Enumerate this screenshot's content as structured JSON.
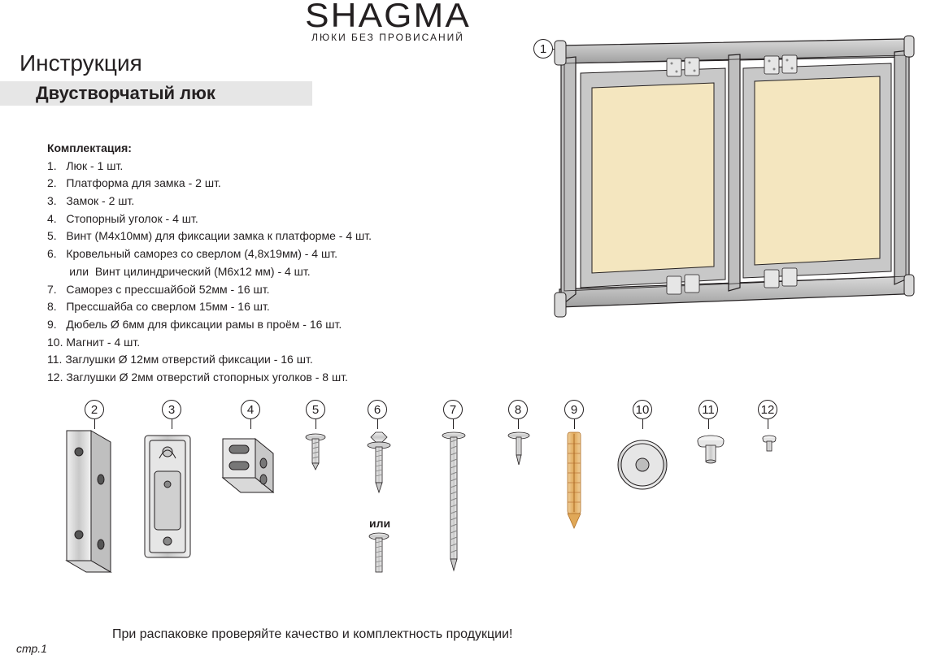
{
  "brand": {
    "name": "SHAGMA",
    "tagline": "ЛЮКИ БЕЗ ПРОВИСАНИЙ"
  },
  "title": "Инструкция",
  "subtitle": "Двустворчатый люк",
  "contents_header": "Комплектация:",
  "contents": [
    "1.   Люк - 1 шт.",
    "2.   Платформа для замка - 2 шт.",
    "3.   Замок - 2 шт.",
    "4.   Стопорный уголок - 4 шт.",
    "5.   Винт (М4х10мм) для фиксации замка к платформе - 4 шт.",
    "6.   Кровельный саморез со сверлом (4,8х19мм) - 4 шт.",
    "       или  Винт цилиндрический (М6х12 мм) - 4 шт.",
    "7.   Саморез с прессшайбой 52мм - 16 шт.",
    "8.   Прессшайба со сверлом 15мм - 16 шт.",
    "9.   Дюбель Ø 6мм для фиксации рамы в проём - 16 шт.",
    "10. Магнит - 4 шт.",
    "11. Заглушки Ø 12мм отверстий фиксации - 16 шт.",
    "12. Заглушки Ø 2мм отверстий стопорных уголков - 8 шт."
  ],
  "parts_labels": [
    "2",
    "3",
    "4",
    "5",
    "6",
    "7",
    "8",
    "9",
    "10",
    "11",
    "12"
  ],
  "or_label": "или",
  "footer": "При распаковке проверяйте качество и комплектность продукции!",
  "page": "стр.1",
  "callout_main": "1",
  "colors": {
    "stroke": "#231f20",
    "fill_metal_light": "#d9d9d9",
    "fill_metal_mid": "#bfbfbf",
    "fill_metal_dark": "#a0a0a0",
    "fill_panel": "#f4e6bf",
    "fill_dowel": "#e8b878",
    "fill_white": "#ffffff",
    "bar_bg": "#e6e6e6"
  },
  "parts_positions_x": [
    30,
    125,
    222,
    302,
    378,
    471,
    551,
    620,
    704,
    785,
    858
  ]
}
